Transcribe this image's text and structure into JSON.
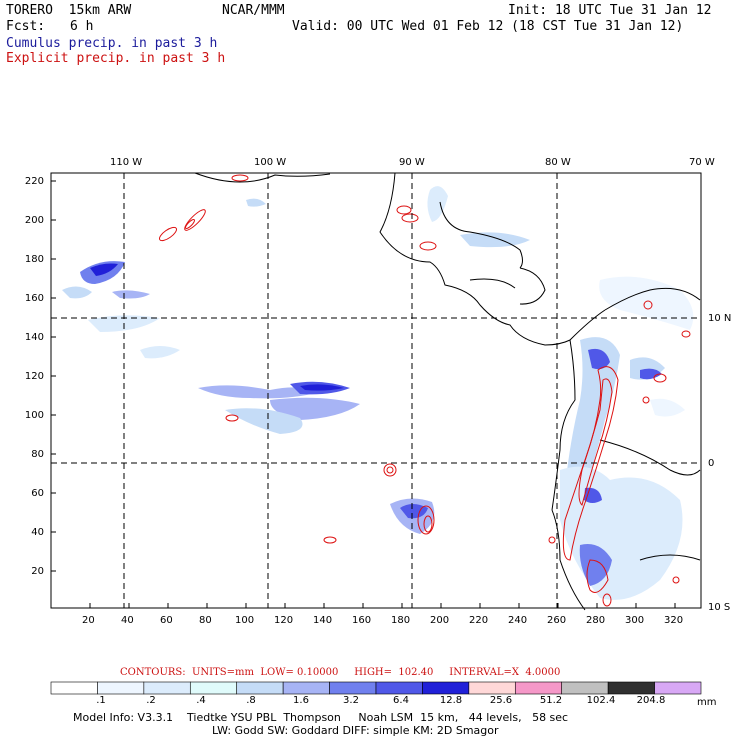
{
  "header": {
    "model": "TORERO  15km ARW",
    "org": "NCAR/MMM",
    "init": "Init: 18 UTC Tue 31 Jan 12",
    "fcst_label": "Fcst:",
    "fcst_value": "6 h",
    "valid": "Valid: 00 UTC Wed 01 Feb 12 (18 CST Tue 31 Jan 12)",
    "line_cumulus": "Cumulus precip. in past 3 h",
    "line_explicit": "Explicit precip. in past 3 h"
  },
  "map": {
    "lon_labels": [
      "110 W",
      "100 W",
      "90 W",
      "80 W",
      "70 W"
    ],
    "lat_labels": [
      "10 N",
      "0",
      "10 S"
    ],
    "y_ticks": [
      "220",
      "200",
      "180",
      "160",
      "140",
      "120",
      "100",
      "80",
      "60",
      "40",
      "20"
    ],
    "x_ticks": [
      "20",
      "40",
      "60",
      "80",
      "100",
      "120",
      "140",
      "160",
      "180",
      "200",
      "220",
      "240",
      "260",
      "280",
      "300",
      "320"
    ]
  },
  "contour_note": "CONTOURS:  UNITS=mm  LOW= 0.10000     HIGH=  102.40     INTERVAL=X  4.0000",
  "colorbar": {
    "labels": [
      ".1",
      ".2",
      ".4",
      ".8",
      "1.6",
      "3.2",
      "6.4",
      "12.8",
      "25.6",
      "51.2",
      "102.4",
      "204.8"
    ],
    "unit": "mm",
    "colors": [
      "#ffffff",
      "#eef6ff",
      "#dcecfc",
      "#e0fbfb",
      "#c5dcf7",
      "#a7b4f5",
      "#7080ee",
      "#5058e8",
      "#2020d8",
      "#ffd8d8",
      "#f598c8",
      "#c0c0c0",
      "#303030",
      "#d8a8f5"
    ]
  },
  "footer": {
    "line1": "Model Info: V3.3.1    Tiedtke YSU PBL  Thompson     Noah LSM  15 km,   44 levels,   58 sec",
    "line2": "LW: Godd SW: Goddard DIFF: simple KM: 2D Smagor"
  }
}
